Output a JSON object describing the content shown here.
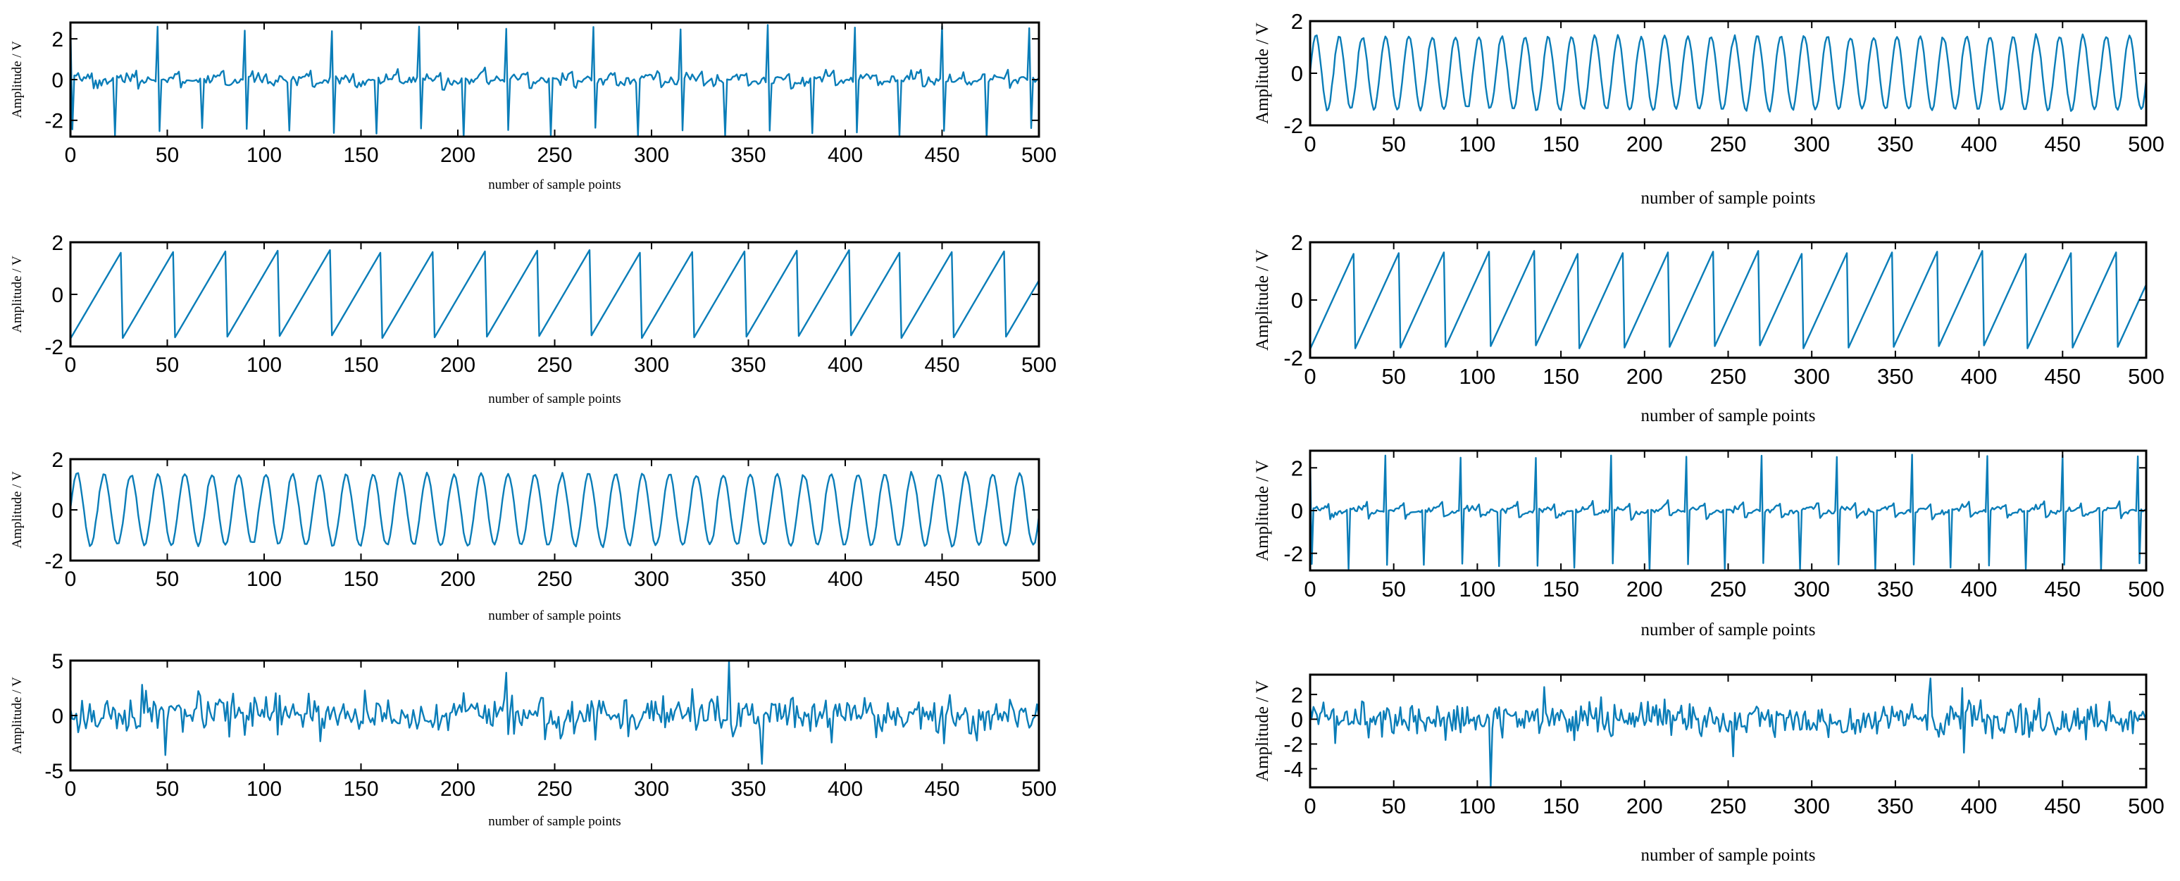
{
  "figure": {
    "trace_color": "#0a7db8",
    "background": "#ffffff"
  },
  "chart_data": [
    {
      "id": "left-1",
      "type": "line",
      "shape": "spike",
      "x_range": [
        0,
        500
      ],
      "ylim": [
        -2.8,
        2.8
      ],
      "xticks": [
        "0",
        "50",
        "100",
        "150",
        "200",
        "250",
        "300",
        "350",
        "400",
        "450",
        "500"
      ],
      "yticks": [
        {
          "value": -2,
          "label": "-2"
        },
        {
          "value": 0,
          "label": "0"
        },
        {
          "value": 2,
          "label": "2"
        }
      ],
      "xlabel": "number of sample points",
      "ylabel": "Amplitude / V",
      "series": [
        {
          "period": 22.5,
          "phase": 23,
          "amplitude": 2.7,
          "noise": 0.12
        }
      ]
    },
    {
      "id": "left-2",
      "type": "line",
      "shape": "sawtooth",
      "x_range": [
        0,
        500
      ],
      "ylim": [
        -2,
        2
      ],
      "xticks": [
        "0",
        "50",
        "100",
        "150",
        "200",
        "250",
        "300",
        "350",
        "400",
        "450",
        "500"
      ],
      "yticks": [
        {
          "value": -2,
          "label": "-2"
        },
        {
          "value": 0,
          "label": "0"
        },
        {
          "value": 2,
          "label": "2"
        }
      ],
      "xlabel": "number of sample points",
      "ylabel": "Amplitude / V",
      "series": [
        {
          "period": 26.8,
          "phase": 0,
          "amplitude": 1.7,
          "noise": 0
        }
      ]
    },
    {
      "id": "left-3",
      "type": "line",
      "shape": "sine",
      "x_range": [
        0,
        500
      ],
      "ylim": [
        -2,
        2
      ],
      "xticks": [
        "0",
        "50",
        "100",
        "150",
        "200",
        "250",
        "300",
        "350",
        "400",
        "450",
        "500"
      ],
      "yticks": [
        {
          "value": -2,
          "label": "-2"
        },
        {
          "value": 0,
          "label": "0"
        },
        {
          "value": 2,
          "label": "2"
        }
      ],
      "xlabel": "number of sample points",
      "ylabel": "Amplitude / V",
      "series": [
        {
          "period": 13.9,
          "phase": 0,
          "amplitude": 1.4,
          "noise": 0.04
        }
      ]
    },
    {
      "id": "left-4",
      "type": "line",
      "shape": "noise",
      "x_range": [
        0,
        500
      ],
      "ylim": [
        -5,
        5
      ],
      "xticks": [
        "0",
        "50",
        "100",
        "150",
        "200",
        "250",
        "300",
        "350",
        "400",
        "450",
        "500"
      ],
      "yticks": [
        {
          "value": -5,
          "label": "-5"
        },
        {
          "value": 0,
          "label": "0"
        },
        {
          "value": 5,
          "label": "5"
        }
      ],
      "xlabel": "number of sample points",
      "ylabel": "Amplitude / V",
      "series": [
        {
          "sigma": 1.0,
          "seed": 17,
          "spikes": [
            [
              37,
              2.8
            ],
            [
              49,
              -3.6
            ],
            [
              225,
              3.9
            ],
            [
              340,
              4.9
            ],
            [
              357,
              -4.4
            ]
          ]
        }
      ]
    },
    {
      "id": "right-1",
      "type": "line",
      "shape": "sine",
      "x_range": [
        0,
        500
      ],
      "ylim": [
        -2,
        2
      ],
      "xticks": [
        "0",
        "50",
        "100",
        "150",
        "200",
        "250",
        "300",
        "350",
        "400",
        "450",
        "500"
      ],
      "yticks": [
        {
          "value": -2,
          "label": "-2"
        },
        {
          "value": 0,
          "label": "0"
        },
        {
          "value": 2,
          "label": "2"
        }
      ],
      "xlabel": "number of sample points",
      "ylabel": "Amplitude / V",
      "series": [
        {
          "period": 13.9,
          "phase": 0,
          "amplitude": 1.4,
          "noise": 0.04
        }
      ]
    },
    {
      "id": "right-2",
      "type": "line",
      "shape": "sawtooth",
      "x_range": [
        0,
        500
      ],
      "ylim": [
        -2,
        2
      ],
      "xticks": [
        "0",
        "50",
        "100",
        "150",
        "200",
        "250",
        "300",
        "350",
        "400",
        "450",
        "500"
      ],
      "yticks": [
        {
          "value": -2,
          "label": "-2"
        },
        {
          "value": 0,
          "label": "0"
        },
        {
          "value": 2,
          "label": "2"
        }
      ],
      "xlabel": "number of sample points",
      "ylabel": "Amplitude / V",
      "series": [
        {
          "period": 26.8,
          "phase": 0,
          "amplitude": 1.7,
          "noise": 0
        }
      ]
    },
    {
      "id": "right-3",
      "type": "line",
      "shape": "spike",
      "x_range": [
        0,
        500
      ],
      "ylim": [
        -2.8,
        2.8
      ],
      "xticks": [
        "0",
        "50",
        "100",
        "150",
        "200",
        "250",
        "300",
        "350",
        "400",
        "450",
        "500"
      ],
      "yticks": [
        {
          "value": -2,
          "label": "-2"
        },
        {
          "value": 0,
          "label": "0"
        },
        {
          "value": 2,
          "label": "2"
        }
      ],
      "xlabel": "number of sample points",
      "ylabel": "Amplitude / V",
      "series": [
        {
          "period": 22.5,
          "phase": 23,
          "amplitude": 2.7,
          "noise": 0.06
        }
      ]
    },
    {
      "id": "right-4",
      "type": "line",
      "shape": "noise",
      "x_range": [
        0,
        500
      ],
      "ylim": [
        -5.5,
        3.6
      ],
      "xticks": [
        "0",
        "50",
        "100",
        "150",
        "200",
        "250",
        "300",
        "350",
        "400",
        "450",
        "500"
      ],
      "yticks": [
        {
          "value": -4,
          "label": "-4"
        },
        {
          "value": -2,
          "label": "-2"
        },
        {
          "value": 0,
          "label": "0"
        },
        {
          "value": 2,
          "label": "2"
        }
      ],
      "xlabel": "number of sample points",
      "ylabel": "Amplitude / V",
      "series": [
        {
          "sigma": 0.85,
          "seed": 42,
          "spikes": [
            [
              108,
              -5.4
            ],
            [
              140,
              2.6
            ],
            [
              253,
              -3.0
            ],
            [
              371,
              3.3
            ],
            [
              391,
              -2.7
            ]
          ]
        }
      ]
    }
  ]
}
